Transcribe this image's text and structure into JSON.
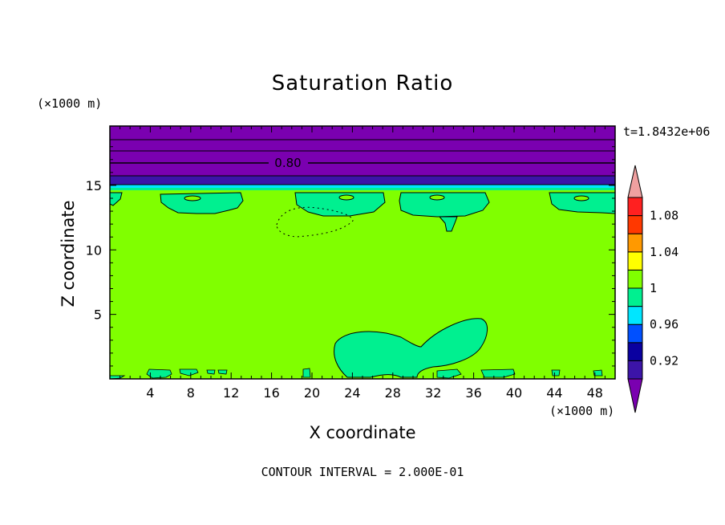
{
  "chart_data": {
    "type": "contour",
    "title": "Saturation Ratio",
    "xlabel": "X coordinate",
    "ylabel": "Z coordinate",
    "x_unit": "(×1000 m)",
    "y_unit": "(×1000 m)",
    "xlim": [
      0,
      50
    ],
    "ylim": [
      0,
      19.6
    ],
    "x_ticks": [
      4,
      8,
      12,
      16,
      20,
      24,
      28,
      32,
      36,
      40,
      44,
      48
    ],
    "y_ticks": [
      5,
      10,
      15
    ],
    "time_label": "t=1.8432e+06",
    "footer": "CONTOUR INTERVAL = 2.000E-01",
    "contour_label": "0.80",
    "colorbar": {
      "tick_labels": [
        "0.92",
        "0.96",
        "1",
        "1.04",
        "1.08"
      ],
      "levels": [
        0.9,
        0.92,
        0.94,
        0.96,
        0.98,
        1.0,
        1.02,
        1.04,
        1.06,
        1.08,
        1.1
      ],
      "colors": [
        "#7a00b0",
        "#3c14a8",
        "#0a00a0",
        "#0050ff",
        "#00e6ff",
        "#00f090",
        "#80ff00",
        "#ffff00",
        "#ff9900",
        "#ff3800",
        "#ff2020",
        "#f0a0a0"
      ]
    },
    "fields": {
      "background_color": "#80ff00",
      "top_layer_color": "#7a00b0",
      "blue_band_color": "#3c14a8",
      "cyan_band_color": "#00e6ff",
      "patch_color": "#00f090"
    }
  }
}
